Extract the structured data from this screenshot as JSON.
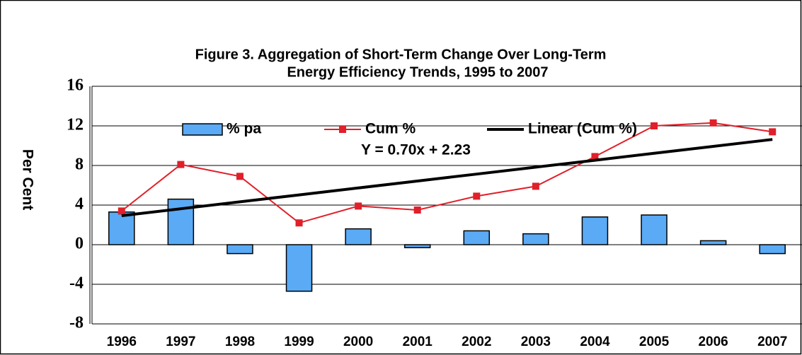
{
  "chart_data": {
    "type": "bar_line",
    "title": [
      "Figure 3.  Aggregation of Short-Term Change Over Long-Term",
      "Energy Efficiency Trends, 1995 to 2007"
    ],
    "ylabel": "Per Cent",
    "annotation": "Y = 0.70x + 2.23",
    "categories": [
      "1996",
      "1997",
      "1998",
      "1999",
      "2000",
      "2001",
      "2002",
      "2003",
      "2004",
      "2005",
      "2006",
      "2007"
    ],
    "series": [
      {
        "name": "% pa",
        "kind": "bar",
        "color": "#5aaaf5",
        "values": [
          3.3,
          4.6,
          -0.9,
          -4.7,
          1.6,
          -0.3,
          1.4,
          1.1,
          2.8,
          3.0,
          0.4,
          -0.9
        ]
      },
      {
        "name": "Cum %",
        "kind": "line",
        "color": "#e0202a",
        "values": [
          3.4,
          8.1,
          6.9,
          2.2,
          3.9,
          3.5,
          4.9,
          5.9,
          8.9,
          12.0,
          12.3,
          11.4
        ]
      },
      {
        "name": "Linear (Cum %)",
        "kind": "trend",
        "color": "#000000",
        "values": [
          2.93,
          3.63,
          4.33,
          5.03,
          5.73,
          6.43,
          7.13,
          7.83,
          8.53,
          9.23,
          9.93,
          10.63
        ]
      }
    ],
    "ylim": [
      -8,
      16
    ],
    "yticks": [
      -8,
      -4,
      0,
      4,
      8,
      12,
      16
    ],
    "grid": true,
    "legend": "top"
  }
}
